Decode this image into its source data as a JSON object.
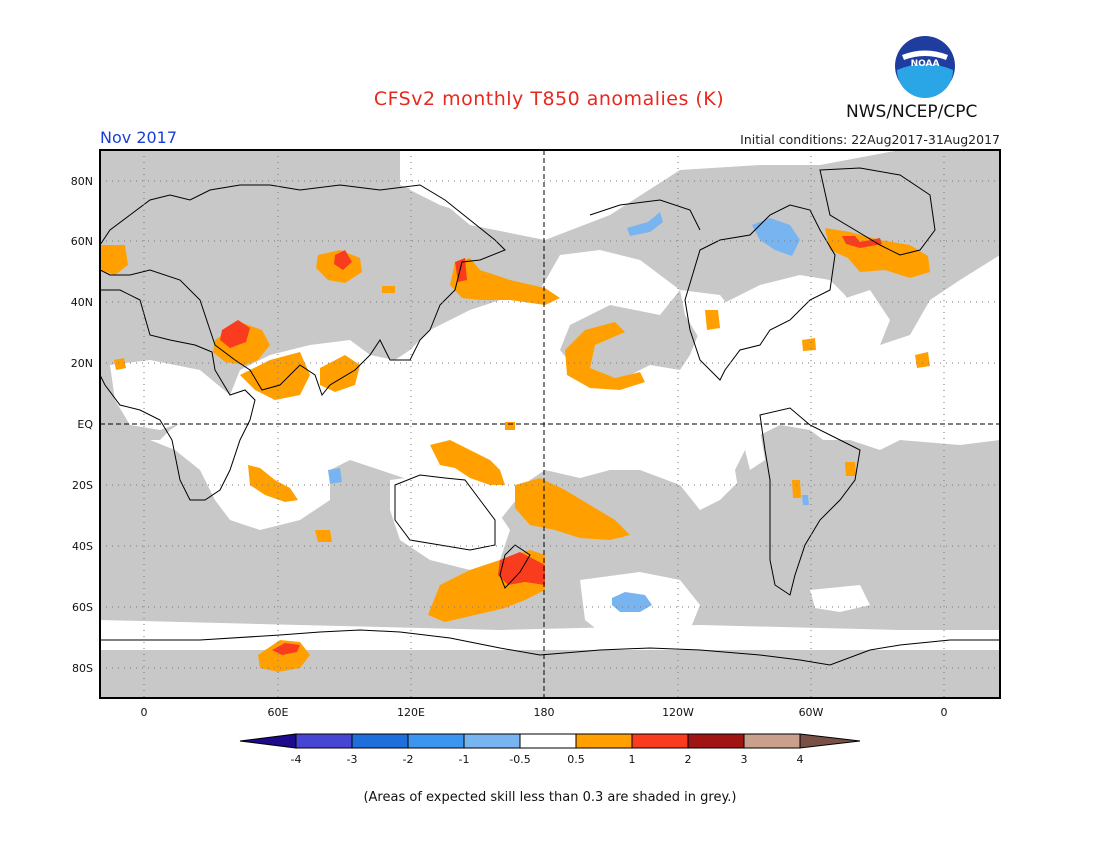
{
  "header": {
    "title": "CFSv2 monthly T850 anomalies (K)",
    "month": "Nov 2017",
    "initial_conditions": "Initial conditions: 22Aug2017-31Aug2017",
    "agency": "NWS/NCEP/CPC",
    "logo_text": "NOAA"
  },
  "map": {
    "lat_labels": [
      "80N",
      "60N",
      "40N",
      "20N",
      "EQ",
      "20S",
      "40S",
      "60S",
      "80S"
    ],
    "lon_labels": [
      "0",
      "60E",
      "120E",
      "180",
      "120W",
      "60W",
      "0"
    ],
    "colors": {
      "grey_low_skill": "#c8c8c8",
      "neutral": "#ffffff",
      "warm_0_5_1": "#ffa000",
      "warm_1_2": "#fa3c1e",
      "cool_neg0_5_neg1": "#78b4f0"
    }
  },
  "colorbar": {
    "tick_labels": [
      "-4",
      "-3",
      "-2",
      "-1",
      "-0.5",
      "0.5",
      "1",
      "2",
      "3",
      "4"
    ],
    "colors": [
      "#1e0a8c",
      "#4646d2",
      "#1e6edc",
      "#3c96f0",
      "#78b4f0",
      "#ffffff",
      "#ffa000",
      "#fa3c1e",
      "#a01414",
      "#c8a08c",
      "#785046"
    ]
  },
  "footnote": "(Areas of expected skill less than 0.3 are shaded in grey.)"
}
